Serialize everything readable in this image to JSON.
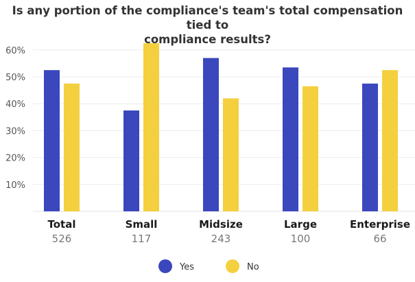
{
  "chart_data": {
    "type": "bar",
    "title_lines": [
      "Is any portion of the compliance's team's total compensation tied to",
      "compliance results?"
    ],
    "categories": [
      "Total",
      "Small",
      "Midsize",
      "Large",
      "Enterprise"
    ],
    "category_counts": [
      "526",
      "117",
      "243",
      "100",
      "66"
    ],
    "series": [
      {
        "name": "Yes",
        "color": "#3a47bd",
        "values": [
          52.5,
          37.5,
          57,
          53.5,
          47.5
        ]
      },
      {
        "name": "No",
        "color": "#f4d03f",
        "values": [
          47.5,
          62.5,
          42,
          46.5,
          52.5
        ]
      }
    ],
    "y_ticks": [
      "10%",
      "20%",
      "30%",
      "40%",
      "50%",
      "60%"
    ],
    "y_tick_values": [
      10,
      20,
      30,
      40,
      50,
      60
    ],
    "ylim": [
      0,
      60
    ],
    "grid": true,
    "legend_position": "bottom"
  }
}
